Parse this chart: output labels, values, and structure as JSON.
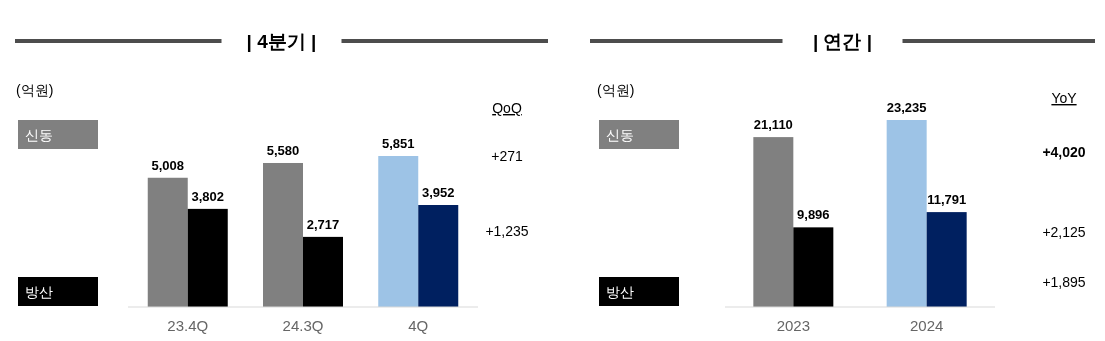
{
  "chart_data": [
    {
      "type": "bar",
      "title": "| 4분기 |",
      "ylabel": "(억원)",
      "categories": [
        "23.4Q",
        "24.3Q",
        "4Q"
      ],
      "legend": "left",
      "series": [
        {
          "name": "신동",
          "color": "#808080",
          "colors": [
            "#808080",
            "#808080",
            "#9dc3e6"
          ],
          "values": [
            5008,
            5580,
            5851
          ],
          "value_labels": [
            "5,008",
            "5,580",
            "5,851"
          ]
        },
        {
          "name": "방산",
          "color": "#000000",
          "colors": [
            "#000000",
            "#000000",
            "#002060"
          ],
          "values": [
            3802,
            2717,
            3952
          ],
          "value_labels": [
            "3,802",
            "2,717",
            "3,952"
          ]
        }
      ],
      "annotations": [
        "QoQ",
        "+271",
        "+1,235"
      ]
    },
    {
      "type": "bar",
      "title": "| 연간 |",
      "ylabel": "(억원)",
      "categories": [
        "2023",
        "2024"
      ],
      "legend": "left",
      "series": [
        {
          "name": "신동",
          "color": "#808080",
          "colors": [
            "#808080",
            "#9dc3e6"
          ],
          "values": [
            21110,
            23235
          ],
          "value_labels": [
            "21,110",
            "23,235"
          ]
        },
        {
          "name": "방산",
          "color": "#000000",
          "colors": [
            "#000000",
            "#002060"
          ],
          "values": [
            9896,
            11791
          ],
          "value_labels": [
            "9,896",
            "11,791"
          ]
        }
      ],
      "annotations": [
        "YoY",
        "+4,020",
        "+2,125",
        "+1,895"
      ]
    }
  ]
}
